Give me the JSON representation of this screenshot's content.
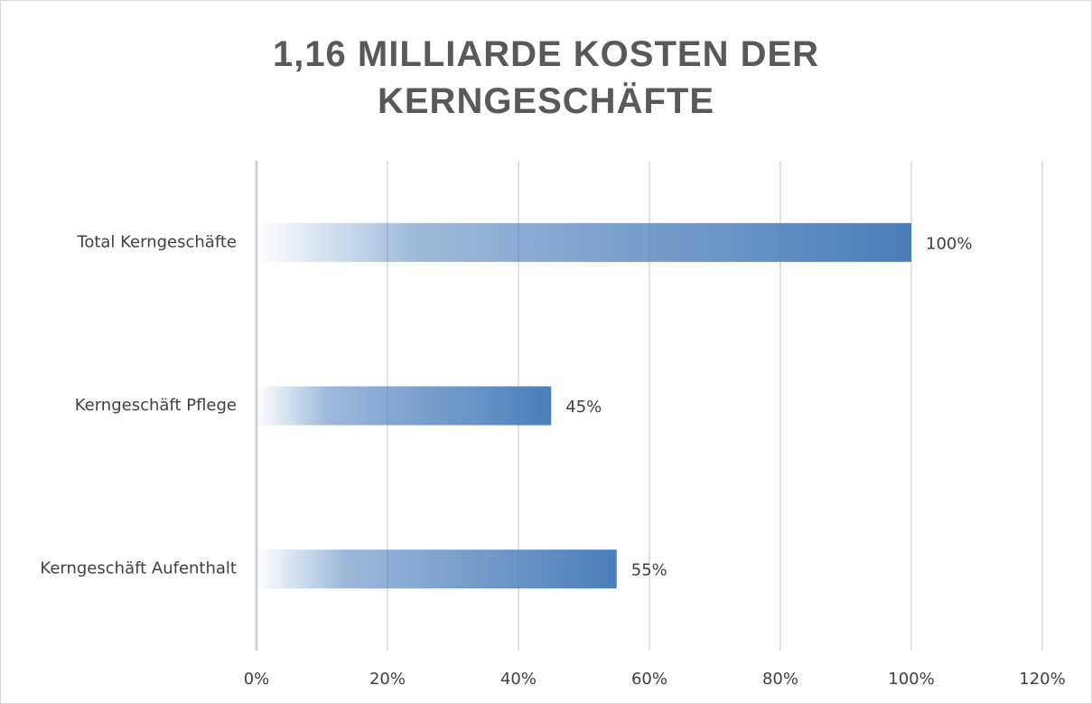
{
  "chart_data": {
    "type": "bar",
    "orientation": "horizontal",
    "title": "1,16 MILLIARDE KOSTEN DER KERNGESCHÄFTE",
    "categories": [
      "Total Kerngeschäfte",
      "Kerngeschäft Pflege",
      "Kerngeschäft Aufenthalt"
    ],
    "values": [
      100,
      45,
      55
    ],
    "value_labels": [
      "100%",
      "45%",
      "55%"
    ],
    "color": "#4a7ebb",
    "xlim": [
      0,
      120
    ],
    "xticks": [
      {
        "value": 0,
        "label": "0%"
      },
      {
        "value": 20,
        "label": "20%"
      },
      {
        "value": 40,
        "label": "40%"
      },
      {
        "value": 60,
        "label": "60%"
      },
      {
        "value": 80,
        "label": "80%"
      },
      {
        "value": 100,
        "label": "100%"
      },
      {
        "value": 120,
        "label": "120%"
      }
    ],
    "grid": true
  }
}
